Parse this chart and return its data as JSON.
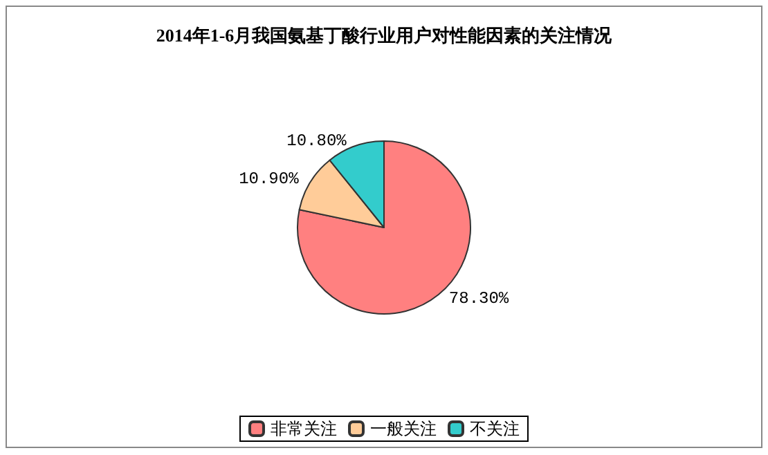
{
  "chart_data": {
    "type": "pie",
    "title": "2014年1-6月我国氨基丁酸行业用户对性能因素的关注情况",
    "categories": [
      "非常关注",
      "一般关注",
      "不关注"
    ],
    "values": [
      78.3,
      10.9,
      10.8
    ],
    "colors": [
      "#ff8080",
      "#ffcc99",
      "#33cccc"
    ],
    "value_labels": [
      "78.30%",
      "10.90%",
      "10.80%"
    ],
    "legend": "bottom"
  }
}
